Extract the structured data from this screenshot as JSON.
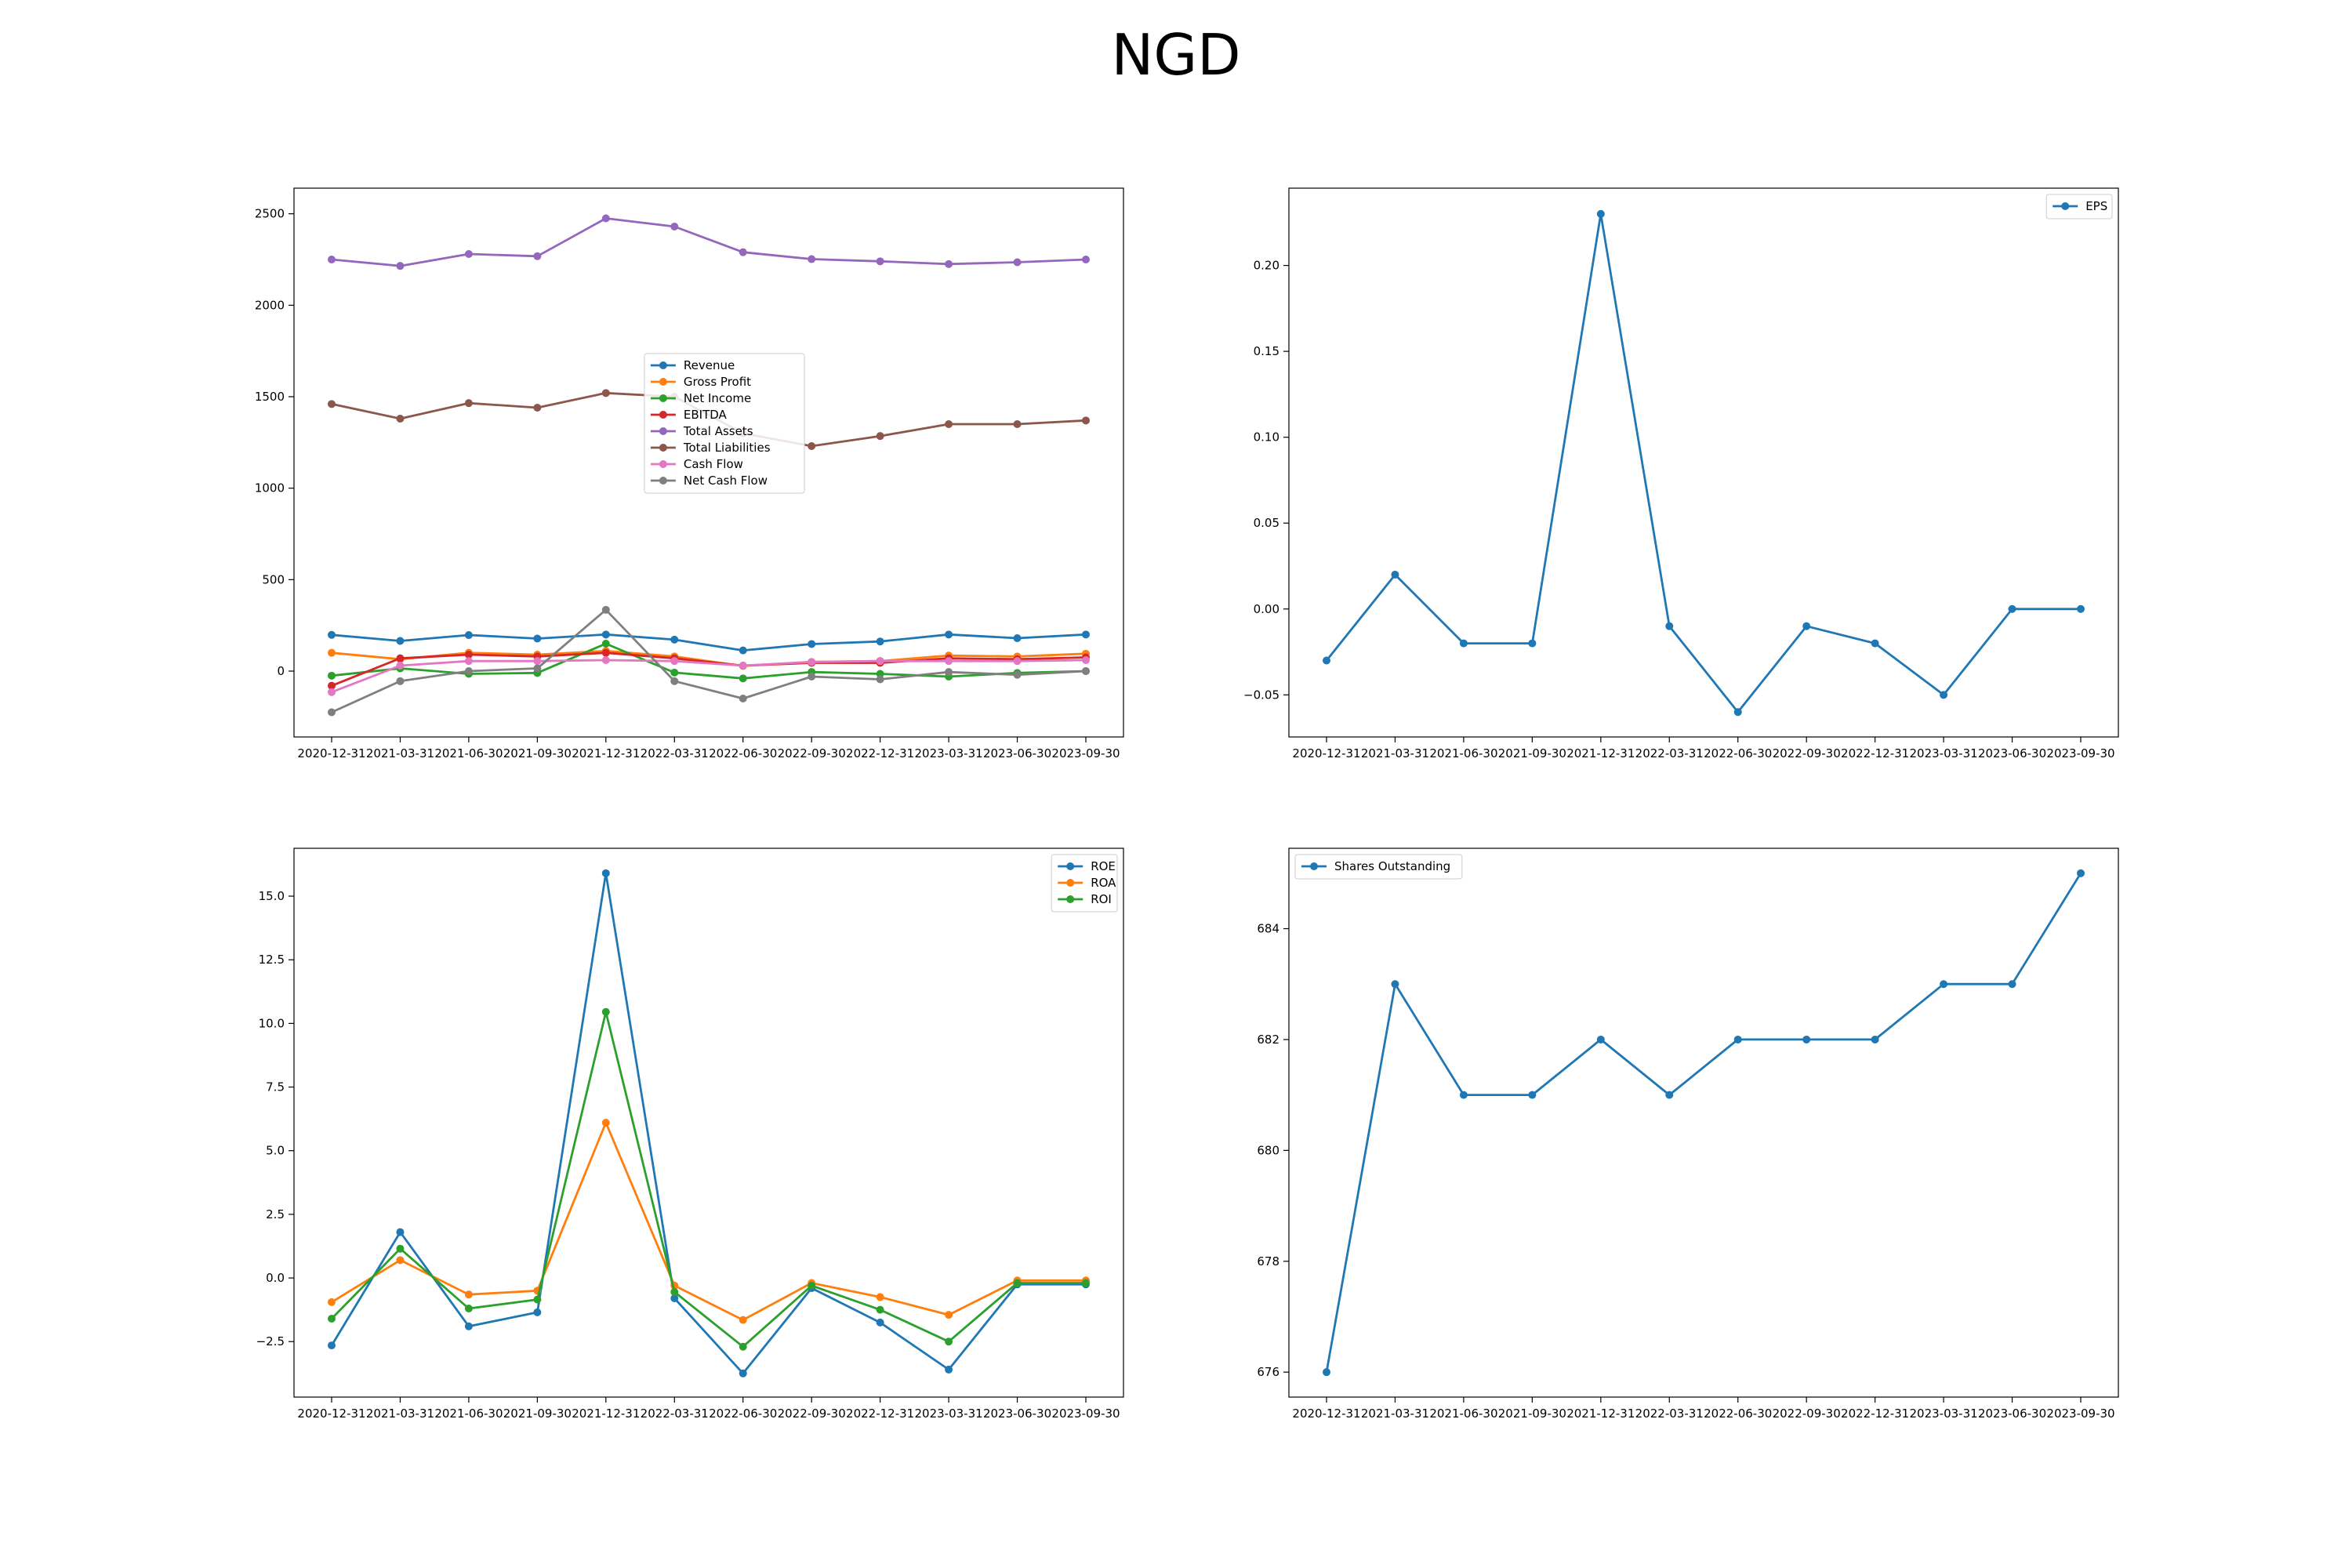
{
  "figure": {
    "title": "NGD"
  },
  "chart_data": [
    {
      "type": "line",
      "legend_position": "center",
      "grid": false,
      "x": [
        "2020-12-31",
        "2021-03-31",
        "2021-06-30",
        "2021-09-30",
        "2021-12-31",
        "2022-03-31",
        "2022-06-30",
        "2022-09-30",
        "2022-12-31",
        "2023-03-31",
        "2023-06-30",
        "2023-09-30"
      ],
      "ylim": [
        -360,
        2640
      ],
      "yticks": [
        0,
        500,
        1000,
        1500,
        2000,
        2500
      ],
      "ytick_labels": [
        "0",
        "500",
        "1000",
        "1500",
        "2000",
        "2500"
      ],
      "series": [
        {
          "name": "Revenue",
          "color": "#1f77b4",
          "values": [
            198,
            165,
            197,
            178,
            200,
            172,
            113,
            148,
            162,
            200,
            180,
            200
          ]
        },
        {
          "name": "Gross Profit",
          "color": "#ff7f0e",
          "values": [
            100,
            65,
            100,
            90,
            110,
            80,
            28,
            50,
            55,
            85,
            80,
            95
          ]
        },
        {
          "name": "Net Income",
          "color": "#2ca02c",
          "values": [
            -25,
            15,
            -15,
            -10,
            150,
            -8,
            -40,
            -5,
            -15,
            -30,
            -10,
            0
          ]
        },
        {
          "name": "EBITDA",
          "color": "#d62728",
          "values": [
            -80,
            70,
            90,
            80,
            100,
            70,
            30,
            45,
            45,
            70,
            65,
            75
          ]
        },
        {
          "name": "Total Assets",
          "color": "#9467bd",
          "values": [
            2250,
            2215,
            2280,
            2268,
            2475,
            2430,
            2290,
            2252,
            2240,
            2225,
            2235,
            2250
          ]
        },
        {
          "name": "Total Liabilities",
          "color": "#8c564b",
          "values": [
            1460,
            1380,
            1465,
            1440,
            1520,
            1500,
            1300,
            1230,
            1285,
            1350,
            1350,
            1370
          ]
        },
        {
          "name": "Cash Flow",
          "color": "#e377c2",
          "values": [
            -115,
            30,
            55,
            55,
            60,
            55,
            30,
            50,
            55,
            55,
            55,
            60
          ]
        },
        {
          "name": "Net Cash Flow",
          "color": "#7f7f7f",
          "values": [
            -225,
            -55,
            0,
            15,
            335,
            -55,
            -150,
            -30,
            -45,
            -5,
            -20,
            0
          ]
        }
      ]
    },
    {
      "type": "line",
      "legend_position": "top-right",
      "grid": false,
      "x": [
        "2020-12-31",
        "2021-03-31",
        "2021-06-30",
        "2021-09-30",
        "2021-12-31",
        "2022-03-31",
        "2022-06-30",
        "2022-09-30",
        "2022-12-31",
        "2023-03-31",
        "2023-06-30",
        "2023-09-30"
      ],
      "ylim": [
        -0.0745,
        0.245
      ],
      "yticks": [
        -0.05,
        0.0,
        0.05,
        0.1,
        0.15,
        0.2
      ],
      "ytick_labels": [
        "−0.05",
        "0.00",
        "0.05",
        "0.10",
        "0.15",
        "0.20"
      ],
      "series": [
        {
          "name": "EPS",
          "color": "#1f77b4",
          "values": [
            -0.03,
            0.02,
            -0.02,
            -0.02,
            0.23,
            -0.01,
            -0.06,
            -0.01,
            -0.02,
            -0.05,
            0.0,
            0.0
          ]
        }
      ]
    },
    {
      "type": "line",
      "legend_position": "top-right",
      "grid": false,
      "x": [
        "2020-12-31",
        "2021-03-31",
        "2021-06-30",
        "2021-09-30",
        "2021-12-31",
        "2022-03-31",
        "2022-06-30",
        "2022-09-30",
        "2022-12-31",
        "2023-03-31",
        "2023-06-30",
        "2023-09-30"
      ],
      "ylim": [
        -4.68,
        16.88
      ],
      "yticks": [
        -2.5,
        0.0,
        2.5,
        5.0,
        7.5,
        10.0,
        12.5,
        15.0
      ],
      "ytick_labels": [
        "−2.5",
        "0.0",
        "2.5",
        "5.0",
        "7.5",
        "10.0",
        "12.5",
        "15.0"
      ],
      "series": [
        {
          "name": "ROE",
          "color": "#1f77b4",
          "values": [
            -2.65,
            1.8,
            -1.9,
            -1.35,
            15.9,
            -0.8,
            -3.75,
            -0.4,
            -1.75,
            -3.6,
            -0.25,
            -0.25
          ]
        },
        {
          "name": "ROA",
          "color": "#ff7f0e",
          "values": [
            -0.95,
            0.7,
            -0.65,
            -0.5,
            6.1,
            -0.3,
            -1.65,
            -0.2,
            -0.75,
            -1.45,
            -0.1,
            -0.1
          ]
        },
        {
          "name": "ROI",
          "color": "#2ca02c",
          "values": [
            -1.6,
            1.15,
            -1.2,
            -0.85,
            10.45,
            -0.55,
            -2.7,
            -0.3,
            -1.25,
            -2.5,
            -0.2,
            -0.2
          ]
        }
      ]
    },
    {
      "type": "line",
      "legend_position": "top-left",
      "grid": false,
      "x": [
        "2020-12-31",
        "2021-03-31",
        "2021-06-30",
        "2021-09-30",
        "2021-12-31",
        "2022-03-31",
        "2022-06-30",
        "2022-09-30",
        "2022-12-31",
        "2023-03-31",
        "2023-06-30",
        "2023-09-30"
      ],
      "ylim": [
        675.55,
        685.45
      ],
      "yticks": [
        676,
        678,
        680,
        682,
        684
      ],
      "ytick_labels": [
        "676",
        "678",
        "680",
        "682",
        "684"
      ],
      "series": [
        {
          "name": "Shares Outstanding",
          "color": "#1f77b4",
          "values": [
            676,
            683,
            681,
            681,
            682,
            681,
            682,
            682,
            682,
            683,
            683,
            685
          ]
        }
      ]
    }
  ]
}
